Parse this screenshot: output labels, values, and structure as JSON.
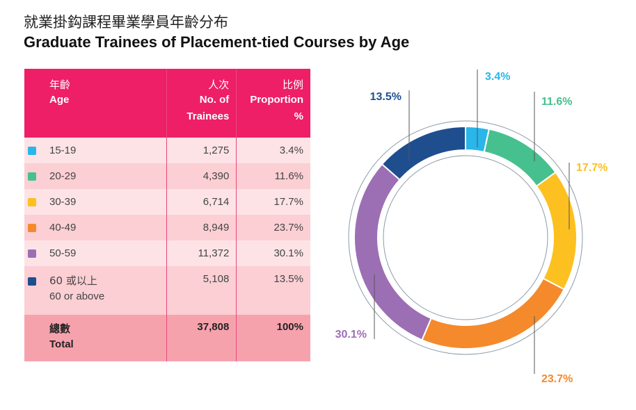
{
  "title_zh": "就業掛鈎課程畢業學員年齡分布",
  "title_en": "Graduate Trainees of Placement-tied Courses by Age",
  "table": {
    "headers": {
      "age_zh": "年齡",
      "age_en": "Age",
      "trainees_zh": "人次",
      "trainees_en1": "No. of",
      "trainees_en2": "Trainees",
      "proportion_zh": "比例",
      "proportion_en1": "Proportion",
      "proportion_en2": "%"
    },
    "rows": [
      {
        "age": "15-19",
        "age_en": "",
        "trainees": "1,275",
        "proportion": "3.4%",
        "color": "#29b6ea"
      },
      {
        "age": "20-29",
        "age_en": "",
        "trainees": "4,390",
        "proportion": "11.6%",
        "color": "#46c08e"
      },
      {
        "age": "30-39",
        "age_en": "",
        "trainees": "6,714",
        "proportion": "17.7%",
        "color": "#fcc020"
      },
      {
        "age": "40-49",
        "age_en": "",
        "trainees": "8,949",
        "proportion": "23.7%",
        "color": "#f48a2c"
      },
      {
        "age": "50-59",
        "age_en": "",
        "trainees": "11,372",
        "proportion": "30.1%",
        "color": "#9c6fb5"
      },
      {
        "age": "60 或以上",
        "age_en": "60 or above",
        "trainees": "5,108",
        "proportion": "13.5%",
        "color": "#1f4e8f"
      }
    ],
    "total": {
      "label_zh": "總數",
      "label_en": "Total",
      "trainees": "37,808",
      "proportion": "100%"
    }
  },
  "chart_data": {
    "type": "pie",
    "style": "donut",
    "categories": [
      "15-19",
      "20-29",
      "30-39",
      "40-49",
      "50-59",
      "60 or above"
    ],
    "values": [
      3.4,
      11.6,
      17.7,
      23.7,
      30.1,
      13.5
    ],
    "counts": [
      1275,
      4390,
      6714,
      8949,
      11372,
      5108
    ],
    "labels": [
      "3.4%",
      "11.6%",
      "17.7%",
      "23.7%",
      "30.1%",
      "13.5%"
    ],
    "colors": [
      "#29b6ea",
      "#46c08e",
      "#fcc020",
      "#f48a2c",
      "#9c6fb5",
      "#1f4e8f"
    ]
  }
}
